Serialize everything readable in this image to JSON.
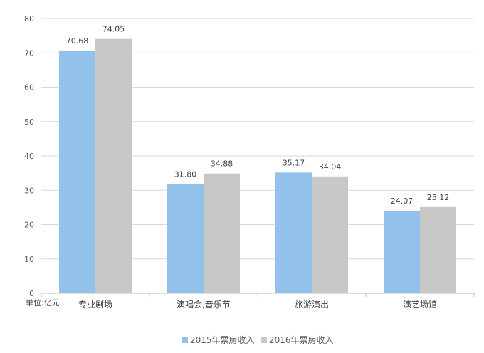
{
  "chart_data": {
    "type": "bar",
    "title": "",
    "xlabel": "",
    "ylabel": "",
    "unit_label": "单位:亿元",
    "categories": [
      "专业剧场",
      "演唱会,音乐节",
      "旅游演出",
      "演艺场馆"
    ],
    "series": [
      {
        "name": "2015年票房收入",
        "values": [
          70.68,
          31.8,
          35.17,
          24.07
        ],
        "color": "#92C1EA"
      },
      {
        "name": "2016年票房收入",
        "values": [
          74.05,
          34.88,
          34.04,
          25.12
        ],
        "color": "#C8C8C8"
      }
    ],
    "ylim": [
      0,
      80
    ],
    "yticks": [
      0,
      10,
      20,
      30,
      40,
      50,
      60,
      70,
      80
    ],
    "grid": true,
    "legend_position": "bottom-center"
  }
}
